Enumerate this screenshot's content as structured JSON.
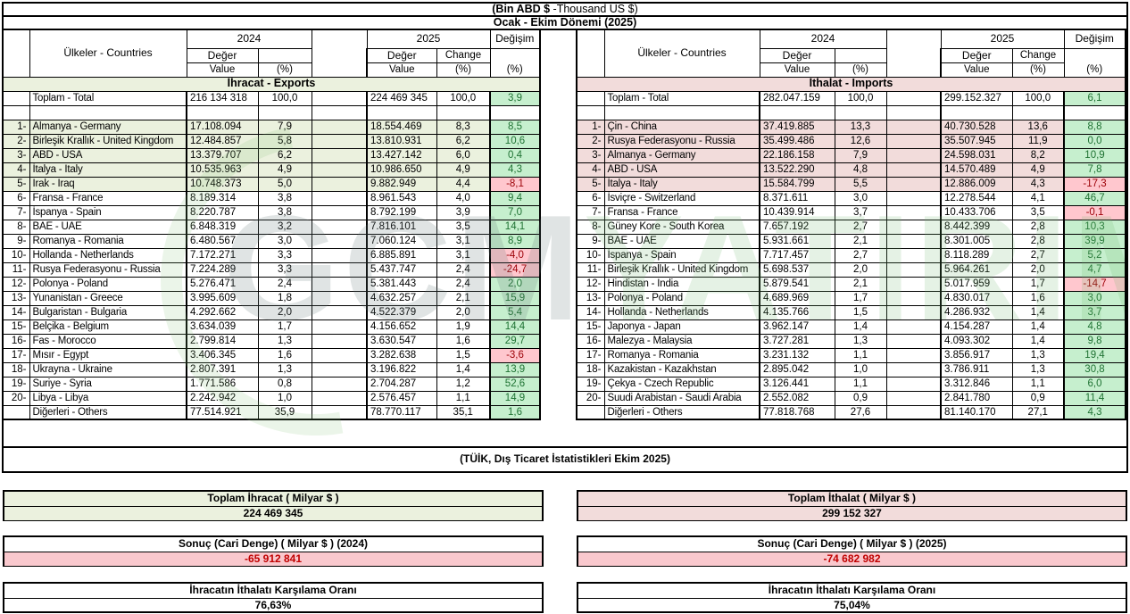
{
  "title": {
    "unit_bold": "(Bin ABD $",
    "unit_rest": " -Thousand US $)",
    "period": "Ocak - Ekim Dönemi (2025)"
  },
  "header": {
    "countries": "Ülkeler - Countries",
    "year_2024": "2024",
    "year_2025": "2025",
    "value_tr": "Değer",
    "value_en": "Value",
    "pct": "(%)",
    "change_tr": "Değişim",
    "change_en": "Change"
  },
  "exports": {
    "band": "İhracat - Exports",
    "total": {
      "label": "Toplam - Total",
      "v2024": "216 134 318",
      "p2024": "100,0",
      "v2025": "224 469 345",
      "p2025": "100,0",
      "change": "3,9"
    },
    "rows": [
      {
        "rank": "1-",
        "country": "Almanya - Germany",
        "v2024": "17.108.094",
        "p2024": "7,9",
        "v2025": "18.554.469",
        "p2025": "8,3",
        "change": "8,5"
      },
      {
        "rank": "2-",
        "country": "Birleşik Krallık - United Kingdom",
        "v2024": "12.484.857",
        "p2024": "5,8",
        "v2025": "13.810.931",
        "p2025": "6,2",
        "change": "10,6"
      },
      {
        "rank": "3-",
        "country": "ABD - USA",
        "v2024": "13.379.707",
        "p2024": "6,2",
        "v2025": "13.427.142",
        "p2025": "6,0",
        "change": "0,4"
      },
      {
        "rank": "4-",
        "country": "İtalya - Italy",
        "v2024": "10.535.963",
        "p2024": "4,9",
        "v2025": "10.986.650",
        "p2025": "4,9",
        "change": "4,3"
      },
      {
        "rank": "5-",
        "country": "Irak - Iraq",
        "v2024": "10.748.373",
        "p2024": "5,0",
        "v2025": "9.882.949",
        "p2025": "4,4",
        "change": "-8,1"
      },
      {
        "rank": "6-",
        "country": "Fransa - France",
        "v2024": "8.189.314",
        "p2024": "3,8",
        "v2025": "8.961.543",
        "p2025": "4,0",
        "change": "9,4"
      },
      {
        "rank": "7-",
        "country": "İspanya - Spain",
        "v2024": "8.220.787",
        "p2024": "3,8",
        "v2025": "8.792.199",
        "p2025": "3,9",
        "change": "7,0"
      },
      {
        "rank": "8-",
        "country": "BAE - UAE",
        "v2024": "6.848.319",
        "p2024": "3,2",
        "v2025": "7.816.101",
        "p2025": "3,5",
        "change": "14,1"
      },
      {
        "rank": "9-",
        "country": "Romanya - Romania",
        "v2024": "6.480.567",
        "p2024": "3,0",
        "v2025": "7.060.124",
        "p2025": "3,1",
        "change": "8,9"
      },
      {
        "rank": "10-",
        "country": "Hollanda - Netherlands",
        "v2024": "7.172.271",
        "p2024": "3,3",
        "v2025": "6.885.891",
        "p2025": "3,1",
        "change": "-4,0"
      },
      {
        "rank": "11-",
        "country": "Rusya Federasyonu - Russia",
        "v2024": "7.224.289",
        "p2024": "3,3",
        "v2025": "5.437.747",
        "p2025": "2,4",
        "change": "-24,7"
      },
      {
        "rank": "12-",
        "country": "Polonya - Poland",
        "v2024": "5.276.471",
        "p2024": "2,4",
        "v2025": "5.381.443",
        "p2025": "2,4",
        "change": "2,0"
      },
      {
        "rank": "13-",
        "country": "Yunanistan - Greece",
        "v2024": "3.995.609",
        "p2024": "1,8",
        "v2025": "4.632.257",
        "p2025": "2,1",
        "change": "15,9"
      },
      {
        "rank": "14-",
        "country": "Bulgaristan - Bulgaria",
        "v2024": "4.292.662",
        "p2024": "2,0",
        "v2025": "4.522.379",
        "p2025": "2,0",
        "change": "5,4"
      },
      {
        "rank": "15-",
        "country": "Belçika - Belgium",
        "v2024": "3.634.039",
        "p2024": "1,7",
        "v2025": "4.156.652",
        "p2025": "1,9",
        "change": "14,4"
      },
      {
        "rank": "16-",
        "country": "Fas - Morocco",
        "v2024": "2.799.814",
        "p2024": "1,3",
        "v2025": "3.630.547",
        "p2025": "1,6",
        "change": "29,7"
      },
      {
        "rank": "17-",
        "country": "Mısır - Egypt",
        "v2024": "3.406.345",
        "p2024": "1,6",
        "v2025": "3.282.638",
        "p2025": "1,5",
        "change": "-3,6"
      },
      {
        "rank": "18-",
        "country": "Ukrayna - Ukraine",
        "v2024": "2.807.391",
        "p2024": "1,3",
        "v2025": "3.196.822",
        "p2025": "1,4",
        "change": "13,9"
      },
      {
        "rank": "19-",
        "country": "Suriye - Syria",
        "v2024": "1.771.586",
        "p2024": "0,8",
        "v2025": "2.704.287",
        "p2025": "1,2",
        "change": "52,6"
      },
      {
        "rank": "20-",
        "country": "Libya - Libya",
        "v2024": "2.242.942",
        "p2024": "1,0",
        "v2025": "2.576.457",
        "p2025": "1,1",
        "change": "14,9"
      }
    ],
    "others": {
      "label": "Diğerleri - Others",
      "v2024": "77.514.921",
      "p2024": "35,9",
      "v2025": "78.770.117",
      "p2025": "35,1",
      "change": "1,6"
    }
  },
  "imports": {
    "band": "İthalat - Imports",
    "total": {
      "label": "Toplam - Total",
      "v2024": "282.047.159",
      "p2024": "100,0",
      "v2025": "299.152.327",
      "p2025": "100,0",
      "change": "6,1"
    },
    "rows": [
      {
        "rank": "1-",
        "country": "Çin - China",
        "v2024": "37.419.885",
        "p2024": "13,3",
        "v2025": "40.730.528",
        "p2025": "13,6",
        "change": "8,8"
      },
      {
        "rank": "2-",
        "country": "Rusya Federasyonu - Russia",
        "v2024": "35.499.486",
        "p2024": "12,6",
        "v2025": "35.507.945",
        "p2025": "11,9",
        "change": "0,0"
      },
      {
        "rank": "3-",
        "country": "Almanya - Germany",
        "v2024": "22.186.158",
        "p2024": "7,9",
        "v2025": "24.598.031",
        "p2025": "8,2",
        "change": "10,9"
      },
      {
        "rank": "4-",
        "country": "ABD - USA",
        "v2024": "13.522.290",
        "p2024": "4,8",
        "v2025": "14.570.489",
        "p2025": "4,9",
        "change": "7,8"
      },
      {
        "rank": "5-",
        "country": "İtalya - Italy",
        "v2024": "15.584.799",
        "p2024": "5,5",
        "v2025": "12.886.009",
        "p2025": "4,3",
        "change": "-17,3"
      },
      {
        "rank": "6-",
        "country": "İsviçre - Switzerland",
        "v2024": "8.371.611",
        "p2024": "3,0",
        "v2025": "12.278.544",
        "p2025": "4,1",
        "change": "46,7"
      },
      {
        "rank": "7-",
        "country": "Fransa - France",
        "v2024": "10.439.914",
        "p2024": "3,7",
        "v2025": "10.433.706",
        "p2025": "3,5",
        "change": "-0,1"
      },
      {
        "rank": "8-",
        "country": "Güney Kore - South Korea",
        "v2024": "7.657.192",
        "p2024": "2,7",
        "v2025": "8.442.399",
        "p2025": "2,8",
        "change": "10,3"
      },
      {
        "rank": "9-",
        "country": "BAE - UAE",
        "v2024": "5.931.661",
        "p2024": "2,1",
        "v2025": "8.301.005",
        "p2025": "2,8",
        "change": "39,9"
      },
      {
        "rank": "10-",
        "country": "İspanya - Spain",
        "v2024": "7.717.457",
        "p2024": "2,7",
        "v2025": "8.118.289",
        "p2025": "2,7",
        "change": "5,2"
      },
      {
        "rank": "11-",
        "country": "Birleşik Krallık - United Kingdom",
        "v2024": "5.698.537",
        "p2024": "2,0",
        "v2025": "5.964.261",
        "p2025": "2,0",
        "change": "4,7"
      },
      {
        "rank": "12-",
        "country": "Hindistan - India",
        "v2024": "5.879.541",
        "p2024": "2,1",
        "v2025": "5.017.959",
        "p2025": "1,7",
        "change": "-14,7"
      },
      {
        "rank": "13-",
        "country": "Polonya - Poland",
        "v2024": "4.689.969",
        "p2024": "1,7",
        "v2025": "4.830.017",
        "p2025": "1,6",
        "change": "3,0"
      },
      {
        "rank": "14-",
        "country": "Hollanda - Netherlands",
        "v2024": "4.135.766",
        "p2024": "1,5",
        "v2025": "4.286.932",
        "p2025": "1,4",
        "change": "3,7"
      },
      {
        "rank": "15-",
        "country": "Japonya - Japan",
        "v2024": "3.962.147",
        "p2024": "1,4",
        "v2025": "4.154.287",
        "p2025": "1,4",
        "change": "4,8"
      },
      {
        "rank": "16-",
        "country": "Malezya - Malaysia",
        "v2024": "3.727.281",
        "p2024": "1,3",
        "v2025": "4.093.302",
        "p2025": "1,4",
        "change": "9,8"
      },
      {
        "rank": "17-",
        "country": "Romanya - Romania",
        "v2024": "3.231.132",
        "p2024": "1,1",
        "v2025": "3.856.917",
        "p2025": "1,3",
        "change": "19,4"
      },
      {
        "rank": "18-",
        "country": "Kazakistan - Kazakhstan",
        "v2024": "2.895.042",
        "p2024": "1,0",
        "v2025": "3.786.911",
        "p2025": "1,3",
        "change": "30,8"
      },
      {
        "rank": "19-",
        "country": "Çekya - Czech Republic",
        "v2024": "3.126.441",
        "p2024": "1,1",
        "v2025": "3.312.846",
        "p2025": "1,1",
        "change": "6,0"
      },
      {
        "rank": "20-",
        "country": "Suudi Arabistan - Saudi Arabia",
        "v2024": "2.552.082",
        "p2024": "0,9",
        "v2025": "2.841.780",
        "p2025": "0,9",
        "change": "11,4"
      }
    ],
    "others": {
      "label": "Diğerleri - Others",
      "v2024": "77.818.768",
      "p2024": "27,6",
      "v2025": "81.140.170",
      "p2025": "27,1",
      "change": "4,3"
    }
  },
  "footer_note": "(TÜİK, Dış Ticaret İstatistikleri Ekim 2025)",
  "summary": {
    "left": {
      "total_label": "Toplam İhracat ( Milyar $ )",
      "total_value": "224 469 345",
      "balance_label": "Sonuç (Cari Denge) ( Milyar $ ) (2024)",
      "balance_value": "-65 912 841",
      "ratio_label": "İhracatın İthalatı Karşılama Oranı",
      "ratio_value": "76,63%"
    },
    "right": {
      "total_label": "Toplam İthalat ( Milyar $ )",
      "total_value": "299 152 327",
      "balance_label": "Sonuç (Cari Denge) ( Milyar $ ) (2025)",
      "balance_value": "-74 682 982",
      "ratio_label": "İhracatın İthalatı Karşılama Oranı",
      "ratio_value": "75,04%"
    }
  },
  "watermark": {
    "text_left": "GCM",
    "text_right": "YATIRIM"
  },
  "colors": {
    "export_fill": "#EBF1DE",
    "import_fill": "#F2DCDB",
    "change_positive_bg": "#C6EFCE",
    "change_positive_text": "#1F7233",
    "change_negative_bg": "#FFC7CE",
    "change_negative_text": "#9C0006",
    "negative_value_text": "#C00000",
    "border": "#000000"
  }
}
